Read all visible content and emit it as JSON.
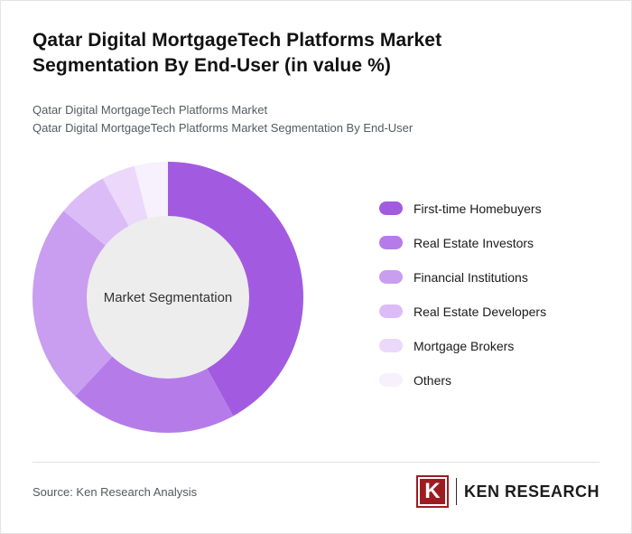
{
  "header": {
    "title": "Qatar Digital MortgageTech Platforms Market Segmentation By End-User (in value %)",
    "subtitle1": "Qatar Digital MortgageTech Platforms Market",
    "subtitle2": "Qatar Digital MortgageTech Platforms Market Segmentation By End-User"
  },
  "chart_data": {
    "type": "pie",
    "variant": "donut",
    "title": "Qatar Digital MortgageTech Platforms Market Segmentation By End-User (in value %)",
    "center_label": "Market Segmentation",
    "categories": [
      "First-time Homebuyers",
      "Real Estate Investors",
      "Financial Institutions",
      "Real Estate Developers",
      "Mortgage Brokers",
      "Others"
    ],
    "values": [
      42,
      20,
      24,
      6,
      4,
      4
    ],
    "colors": [
      "#a25be0",
      "#b57ce9",
      "#c99df0",
      "#dcbcf6",
      "#ebd8fb",
      "#f7f0fd"
    ],
    "hole_color": "#ededed",
    "value_labels_shown": false,
    "legend_position": "right",
    "start_angle_deg": -90,
    "direction": "clockwise"
  },
  "footer": {
    "source": "Source: Ken Research Analysis",
    "logo_letter": "K",
    "logo_text": "KEN RESEARCH",
    "logo_color": "#9e1c21"
  }
}
